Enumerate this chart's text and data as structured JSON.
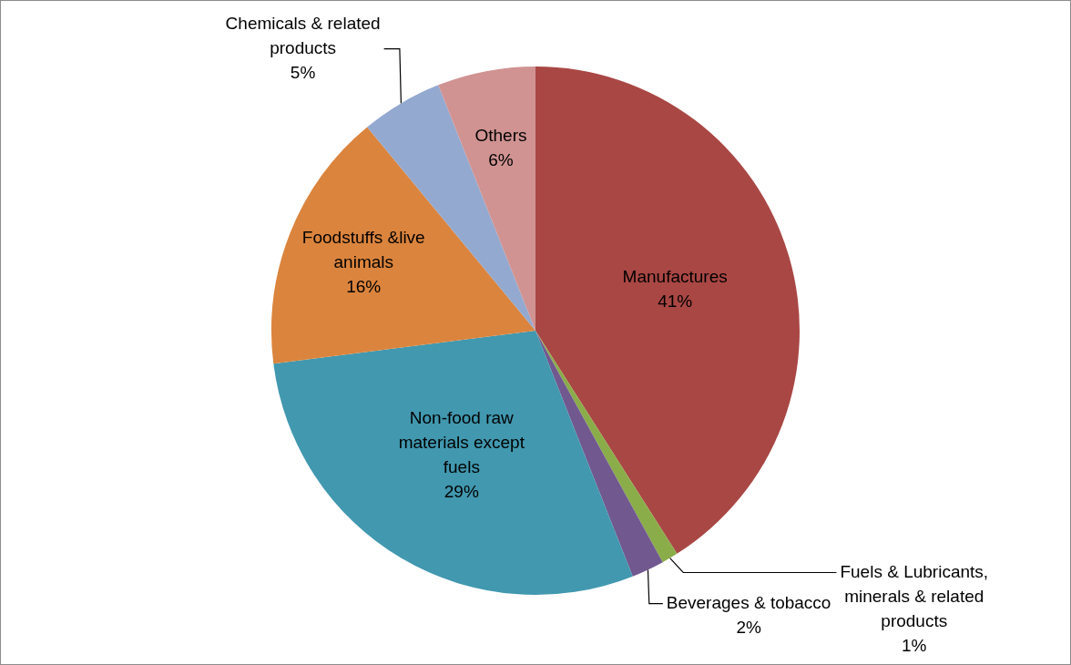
{
  "chart_data": {
    "type": "pie",
    "categories": [
      "Manufactures",
      "Fuels & Lubricants, minerals & related products",
      "Beverages & tobacco",
      "Non-food raw materials except fuels",
      "Foodstuffs &live animals",
      "Chemicals & related products",
      "Others"
    ],
    "values": [
      41,
      1,
      2,
      29,
      16,
      5,
      6
    ],
    "value_labels": [
      "41%",
      "1%",
      "2%",
      "29%",
      "16%",
      "5%",
      "6%"
    ],
    "colors": [
      "#a94744",
      "#8aad4a",
      "#71588f",
      "#4198af",
      "#db843d",
      "#93a9d0",
      "#d09392"
    ],
    "legend": false
  }
}
